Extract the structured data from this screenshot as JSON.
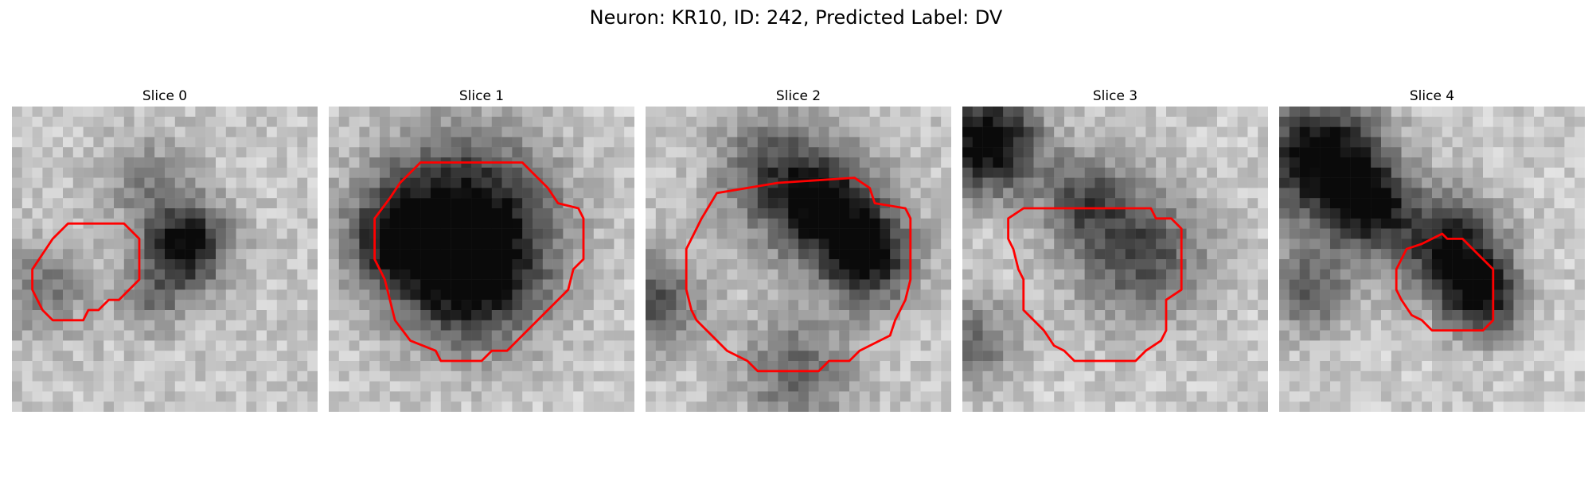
{
  "figure": {
    "title": "Neuron: KR10, ID: 242, Predicted Label: DV",
    "contour_color": "#ff0000",
    "colormap": "grayscale",
    "grid_size": [
      30,
      30
    ]
  },
  "panels": [
    {
      "title": "Slice 0",
      "contour": [
        [
          9,
          11.5
        ],
        [
          11,
          11.5
        ],
        [
          12.5,
          13
        ],
        [
          12.5,
          17
        ],
        [
          10.5,
          19
        ],
        [
          9.5,
          19
        ],
        [
          8.5,
          20
        ],
        [
          7.5,
          20
        ],
        [
          7,
          21
        ],
        [
          4,
          21
        ],
        [
          3,
          20
        ],
        [
          2.5,
          19
        ],
        [
          2,
          18
        ],
        [
          2,
          16
        ],
        [
          3,
          14.5
        ],
        [
          4,
          13
        ],
        [
          5.5,
          11.5
        ]
      ],
      "dark_blobs": [
        {
          "cx": 17,
          "cy": 13.5,
          "r": 3.8,
          "w": 0.85
        },
        {
          "cx": 3,
          "cy": 18,
          "r": 4,
          "w": 0.35
        },
        {
          "cx": 13,
          "cy": 7,
          "r": 4,
          "w": 0.25
        },
        {
          "cx": 14,
          "cy": 19,
          "r": 3,
          "w": 0.3
        }
      ],
      "base": 0.2
    },
    {
      "title": "Slice 1",
      "contour": [
        [
          9,
          5.5
        ],
        [
          19,
          5.5
        ],
        [
          20,
          6.5
        ],
        [
          21.5,
          8
        ],
        [
          22.5,
          9.5
        ],
        [
          24.5,
          10
        ],
        [
          25,
          11
        ],
        [
          25,
          15
        ],
        [
          24,
          16
        ],
        [
          23.5,
          18
        ],
        [
          22,
          19.5
        ],
        [
          21,
          20.5
        ],
        [
          19,
          22.5
        ],
        [
          17.5,
          24
        ],
        [
          16,
          24
        ],
        [
          15,
          25
        ],
        [
          11,
          25
        ],
        [
          10.5,
          24
        ],
        [
          8,
          23
        ],
        [
          6.5,
          21
        ],
        [
          6,
          19
        ],
        [
          5.5,
          17
        ],
        [
          5,
          16
        ],
        [
          4.5,
          15
        ],
        [
          4.5,
          11
        ],
        [
          6,
          9
        ],
        [
          7,
          7.5
        ]
      ],
      "dark_blobs": [
        {
          "cx": 13,
          "cy": 11.5,
          "r": 8,
          "w": 0.85
        },
        {
          "cx": 14,
          "cy": 17,
          "r": 6,
          "w": 0.55
        },
        {
          "cx": 6,
          "cy": 13,
          "r": 4,
          "w": 0.45
        }
      ],
      "base": 0.18
    },
    {
      "title": "Slice 2",
      "contour": [
        [
          7,
          8.5
        ],
        [
          13,
          7.5
        ],
        [
          20.5,
          7
        ],
        [
          22,
          8
        ],
        [
          22.5,
          9.5
        ],
        [
          25.5,
          10
        ],
        [
          26,
          11
        ],
        [
          26,
          17
        ],
        [
          25.5,
          19
        ],
        [
          25,
          20
        ],
        [
          24.5,
          21
        ],
        [
          24,
          22.5
        ],
        [
          23,
          23
        ],
        [
          21,
          24
        ],
        [
          20,
          25
        ],
        [
          18,
          25
        ],
        [
          17,
          26
        ],
        [
          11,
          26
        ],
        [
          10,
          25
        ],
        [
          8,
          24
        ],
        [
          7,
          23
        ],
        [
          6,
          22
        ],
        [
          5,
          21
        ],
        [
          4.5,
          20
        ],
        [
          4,
          18
        ],
        [
          4,
          14
        ],
        [
          5,
          12
        ],
        [
          5.5,
          11
        ]
      ],
      "dark_blobs": [
        {
          "cx": 17.5,
          "cy": 10,
          "r": 5,
          "w": 0.8
        },
        {
          "cx": 22,
          "cy": 15,
          "r": 4,
          "w": 0.75
        },
        {
          "cx": 12,
          "cy": 6,
          "r": 5,
          "w": 0.4
        },
        {
          "cx": 1,
          "cy": 19,
          "r": 4,
          "w": 0.5
        },
        {
          "cx": 15,
          "cy": 26,
          "r": 5,
          "w": 0.4
        }
      ],
      "base": 0.2
    },
    {
      "title": "Slice 3",
      "contour": [
        [
          6,
          10
        ],
        [
          18.5,
          10
        ],
        [
          19,
          11
        ],
        [
          20.5,
          11
        ],
        [
          21.5,
          12
        ],
        [
          21.5,
          18
        ],
        [
          20,
          19
        ],
        [
          20,
          22
        ],
        [
          19.5,
          23
        ],
        [
          18,
          24
        ],
        [
          17,
          25
        ],
        [
          11,
          25
        ],
        [
          10,
          24
        ],
        [
          9,
          23.5
        ],
        [
          8,
          22
        ],
        [
          7,
          21
        ],
        [
          6,
          20
        ],
        [
          6,
          17
        ],
        [
          5.5,
          16
        ],
        [
          5,
          14
        ],
        [
          4.5,
          13
        ],
        [
          4.5,
          11
        ]
      ],
      "dark_blobs": [
        {
          "cx": 2.5,
          "cy": 3.5,
          "r": 4.5,
          "w": 0.95
        },
        {
          "cx": 17.5,
          "cy": 14.5,
          "r": 6,
          "w": 0.55
        },
        {
          "cx": 12,
          "cy": 9,
          "r": 4,
          "w": 0.45
        },
        {
          "cx": 1,
          "cy": 23,
          "r": 4,
          "w": 0.4
        }
      ],
      "base": 0.18
    },
    {
      "title": "Slice 4",
      "contour": [
        [
          15,
          13
        ],
        [
          16,
          12.5
        ],
        [
          16.5,
          13
        ],
        [
          18,
          13
        ],
        [
          19,
          14
        ],
        [
          20,
          15
        ],
        [
          21,
          16
        ],
        [
          21,
          21
        ],
        [
          20,
          22
        ],
        [
          15,
          22
        ],
        [
          14,
          21
        ],
        [
          13,
          20.5
        ],
        [
          12,
          19
        ],
        [
          11.5,
          18
        ],
        [
          11.5,
          16
        ],
        [
          12,
          15
        ],
        [
          12.5,
          14
        ],
        [
          14,
          13.5
        ]
      ],
      "dark_blobs": [
        {
          "cx": 4,
          "cy": 5,
          "r": 5.5,
          "w": 0.9
        },
        {
          "cx": 9,
          "cy": 10,
          "r": 4,
          "w": 0.7
        },
        {
          "cx": 17,
          "cy": 14,
          "r": 4.5,
          "w": 0.8
        },
        {
          "cx": 20,
          "cy": 19,
          "r": 3.5,
          "w": 0.7
        },
        {
          "cx": 3,
          "cy": 18,
          "r": 4,
          "w": 0.45
        }
      ],
      "base": 0.18
    }
  ]
}
